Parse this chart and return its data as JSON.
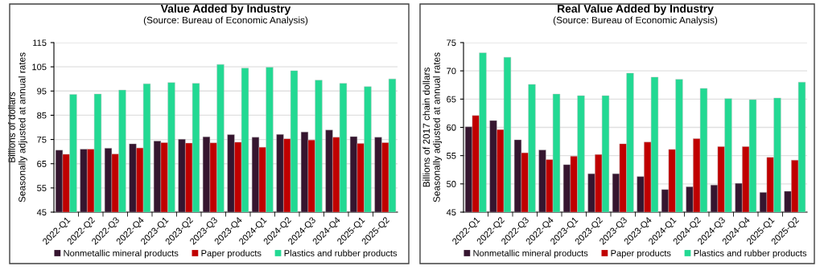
{
  "chart_data": [
    {
      "type": "bar",
      "title": "Value Added by Industry",
      "subtitle": "(Source: Bureau of Economic Analysis)",
      "ylabel": "Billions of dollars\nSeasonally adjusted at annual rates",
      "categories": [
        "2022-Q1",
        "2022-Q2",
        "2022-Q3",
        "2022-Q4",
        "2023-Q1",
        "2023-Q2",
        "2023-Q3",
        "2023-Q4",
        "2024-Q1",
        "2024-Q2",
        "2024-Q3",
        "2024-Q4",
        "2025-Q1",
        "2025-Q2"
      ],
      "series": [
        {
          "name": "Nonmetallic mineral products",
          "color": "#35152f",
          "values": [
            70.6,
            71.0,
            71.4,
            73.2,
            74.4,
            75.1,
            76.1,
            77.0,
            75.9,
            77.1,
            78.1,
            78.9,
            76.2,
            75.9
          ]
        },
        {
          "name": "Paper products",
          "color": "#c00000",
          "values": [
            68.9,
            71.0,
            69.0,
            71.5,
            73.7,
            73.5,
            73.6,
            73.9,
            71.8,
            75.3,
            74.8,
            75.9,
            73.4,
            73.7
          ]
        },
        {
          "name": "Plastics and rubber products",
          "color": "#22d993",
          "values": [
            93.6,
            93.8,
            95.4,
            98.0,
            98.5,
            98.2,
            106.0,
            104.5,
            104.8,
            103.4,
            99.5,
            98.2,
            96.8,
            100.0
          ]
        }
      ],
      "ylim": [
        45,
        115
      ],
      "yticks": [
        45,
        55,
        65,
        75,
        85,
        95,
        105,
        115
      ],
      "grid": "y",
      "legend": "bottom"
    },
    {
      "type": "bar",
      "title": "Real Value Added by Industry",
      "subtitle": "(Source: Bureau of Economic Analysis)",
      "ylabel": "Billions of 2017 chain dollars\nSeasonally adjusted at annual rates",
      "categories": [
        "2022-Q1",
        "2022-Q2",
        "2022-Q3",
        "2022-Q4",
        "2023-Q1",
        "2023-Q2",
        "2023-Q3",
        "2023-Q4",
        "2024-Q1",
        "2024-Q2",
        "2024-Q3",
        "2024-Q4",
        "2025-Q1",
        "2025-Q2"
      ],
      "series": [
        {
          "name": "Nonmetallic mineral products",
          "color": "#35152f",
          "values": [
            60.1,
            61.2,
            57.8,
            56.0,
            53.4,
            51.8,
            51.8,
            51.3,
            49.0,
            49.5,
            49.8,
            50.1,
            48.5,
            48.7
          ]
        },
        {
          "name": "Paper products",
          "color": "#c00000",
          "values": [
            62.1,
            59.6,
            55.5,
            54.3,
            54.9,
            55.2,
            57.1,
            57.4,
            56.1,
            58.0,
            56.6,
            56.6,
            54.7,
            54.2
          ]
        },
        {
          "name": "Plastics and rubber products",
          "color": "#22d993",
          "values": [
            73.2,
            72.4,
            67.6,
            65.9,
            65.6,
            65.6,
            69.6,
            68.9,
            68.5,
            66.9,
            65.1,
            64.9,
            65.2,
            68.0
          ]
        }
      ],
      "ylim": [
        45,
        75
      ],
      "yticks": [
        45,
        50,
        55,
        60,
        65,
        70,
        75
      ],
      "grid": "y",
      "legend": "bottom"
    }
  ]
}
